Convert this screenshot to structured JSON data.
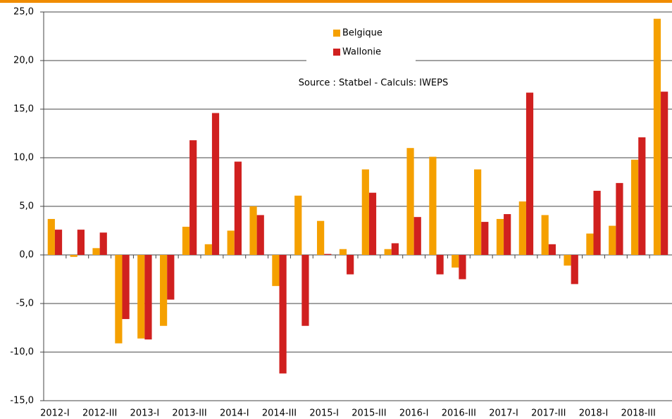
{
  "chart_data": {
    "type": "bar",
    "annotation": "Source : Statbel - Calculs: IWEPS",
    "categories": [
      "2012-I",
      null,
      "2012-III",
      null,
      "2013-I",
      null,
      "2013-III",
      null,
      "2014-I",
      null,
      "2014-III",
      null,
      "2015-I",
      null,
      "2015-III",
      null,
      "2016-I",
      null,
      "2016-III",
      null,
      "2017-I",
      null,
      "2017-III",
      null,
      "2018-I",
      null,
      "2018-III",
      null
    ],
    "series": [
      {
        "name": "Belgique",
        "color": "#f5a000",
        "values": [
          3.7,
          -0.2,
          0.7,
          -9.1,
          -8.6,
          -7.3,
          2.9,
          1.1,
          2.5,
          5.0,
          -3.2,
          6.1,
          3.5,
          0.6,
          8.8,
          0.6,
          11.0,
          10.1,
          -1.3,
          8.8,
          3.7,
          5.5,
          4.1,
          -1.1,
          2.2,
          3.0,
          9.8,
          24.3
        ]
      },
      {
        "name": "Wallonie",
        "color": "#d0201f",
        "values": [
          2.6,
          2.6,
          2.3,
          -6.6,
          -8.7,
          -4.6,
          11.8,
          14.6,
          9.6,
          4.1,
          -12.2,
          -7.3,
          0.1,
          -2.0,
          6.4,
          1.2,
          3.9,
          -2.0,
          -2.5,
          3.4,
          4.2,
          16.7,
          1.1,
          -3.0,
          6.6,
          7.4,
          12.1,
          16.8
        ]
      }
    ],
    "ylim": [
      -15,
      25
    ],
    "yticks": [
      {
        "value": -15,
        "label": "-15,0"
      },
      {
        "value": -10,
        "label": "-10,0"
      },
      {
        "value": -5,
        "label": "-5,0"
      },
      {
        "value": 0,
        "label": "0,0"
      },
      {
        "value": 5,
        "label": "5,0"
      },
      {
        "value": 10,
        "label": "10,0"
      },
      {
        "value": 15,
        "label": "15,0"
      },
      {
        "value": 20,
        "label": "20,0"
      },
      {
        "value": 25,
        "label": "25,0"
      }
    ],
    "grid": true
  }
}
